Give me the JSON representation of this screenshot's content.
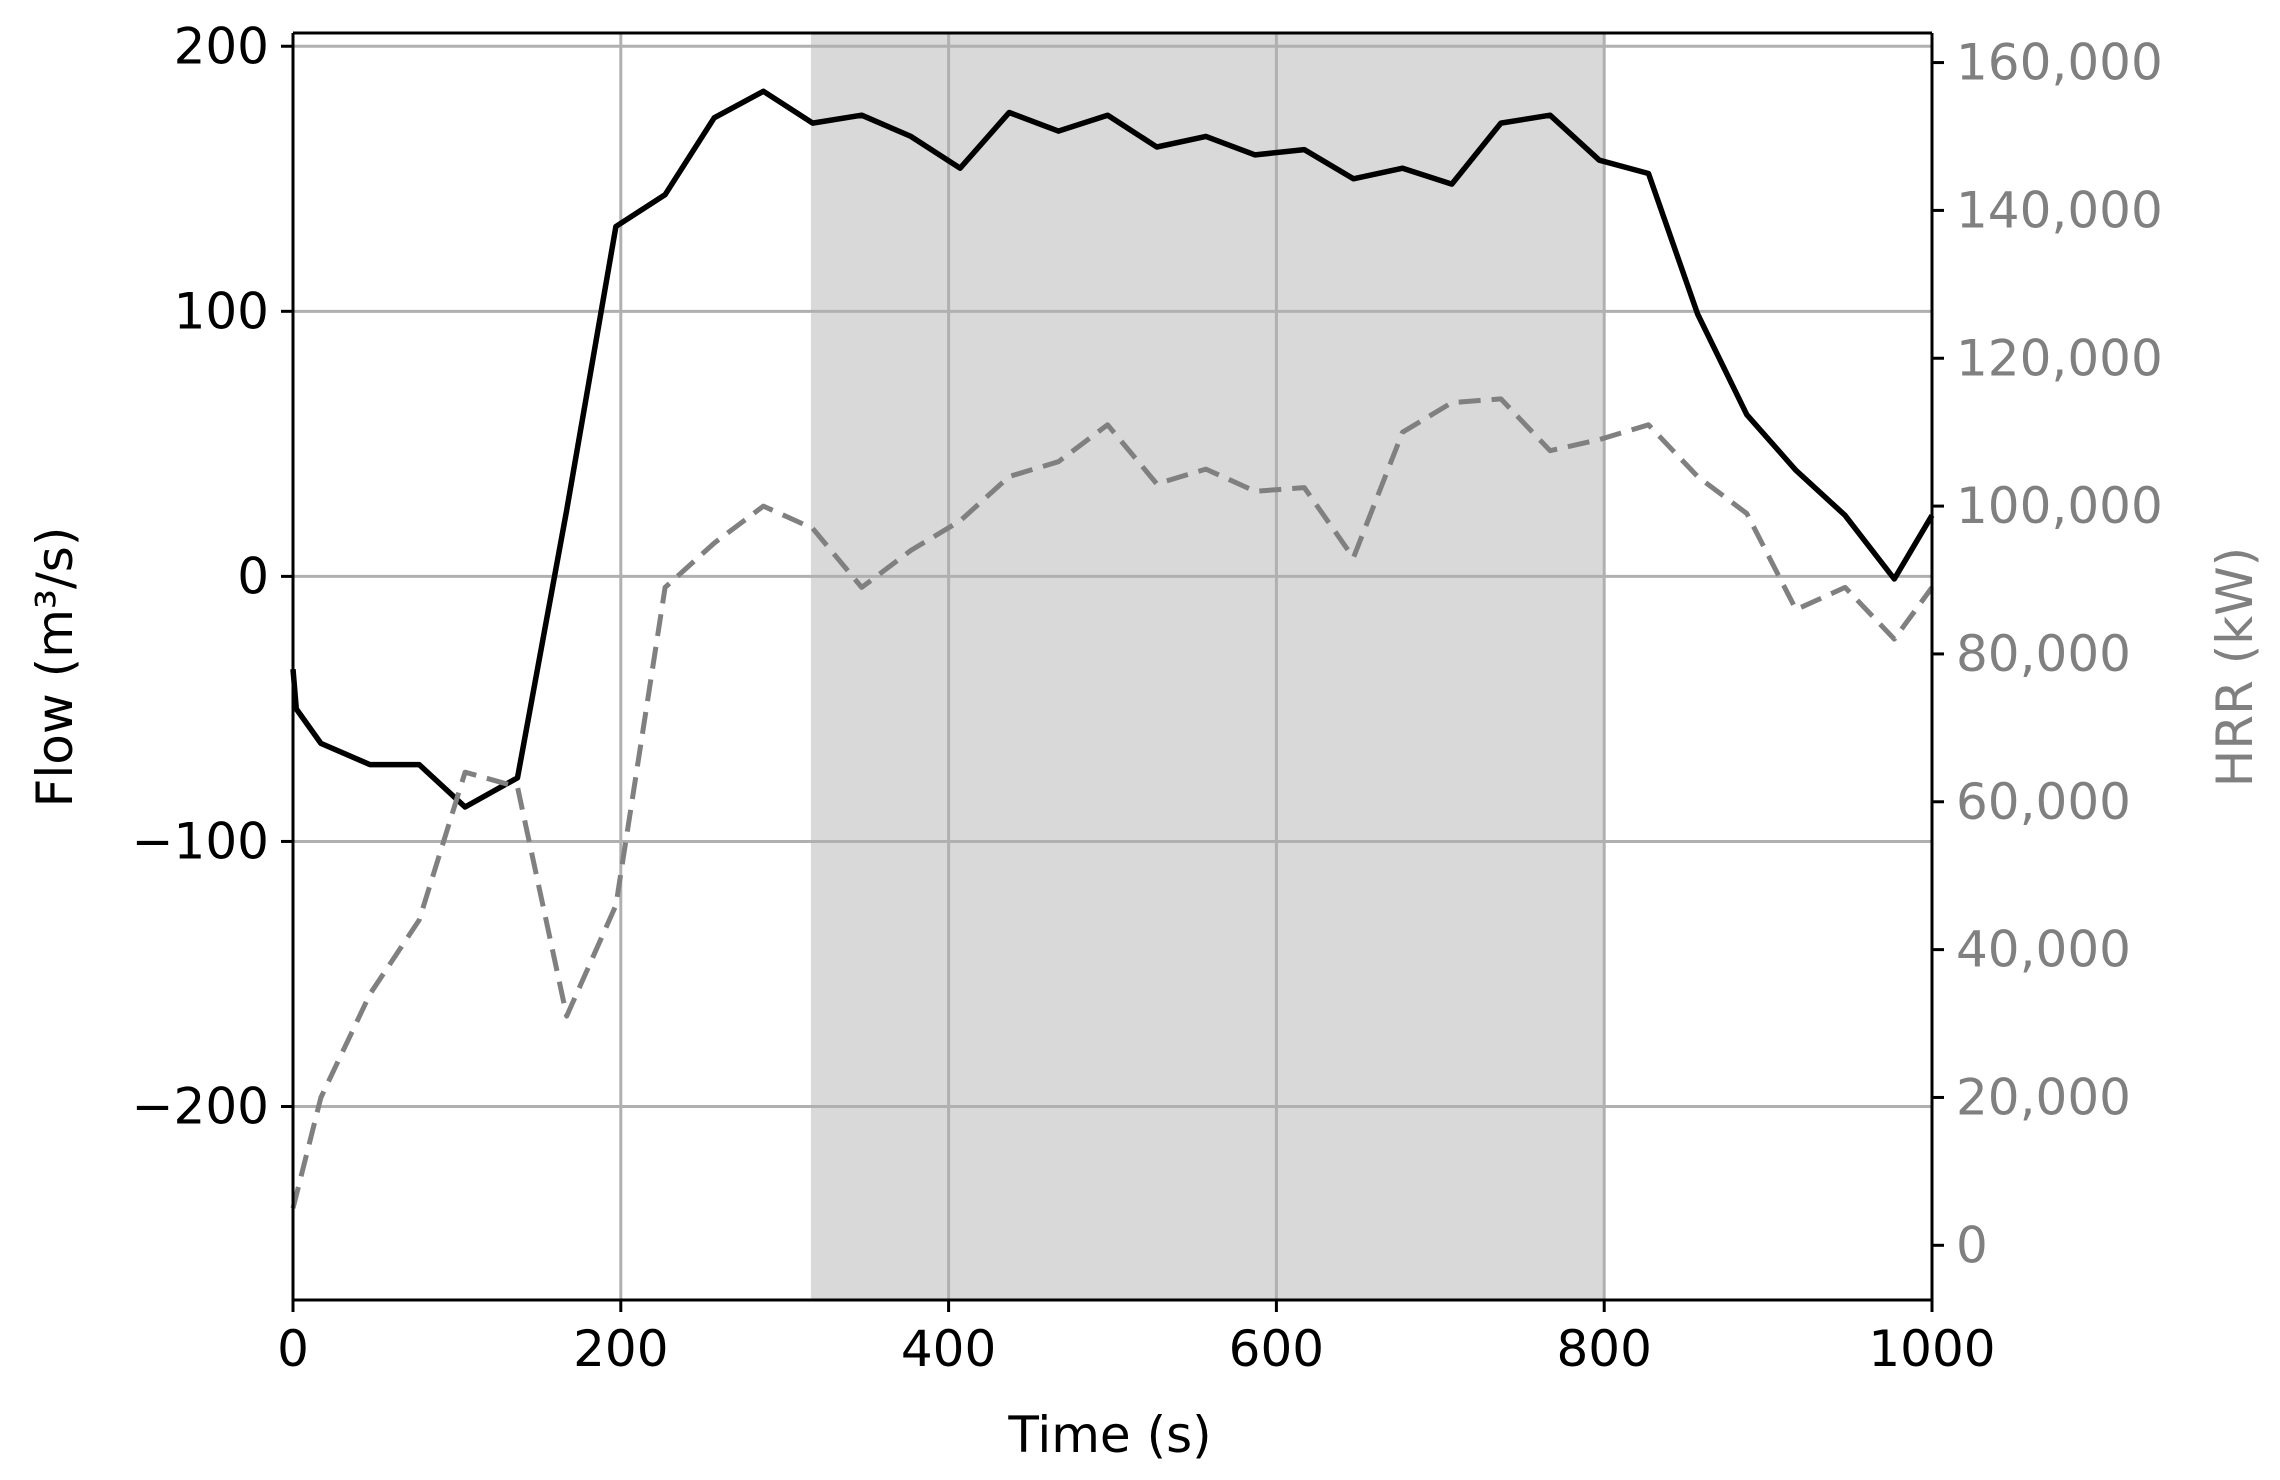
{
  "chart_data": {
    "type": "line",
    "xlabel": "Time (s)",
    "ylabel_left": "Flow (m³/s)",
    "ylabel_right": "HRR (kW)",
    "xlim": [
      0,
      1000
    ],
    "ylim_left": [
      -273,
      205
    ],
    "ylim_right": [
      -7400,
      164000
    ],
    "xticks": [
      0,
      200,
      400,
      600,
      800,
      1000
    ],
    "yticks_left": [
      -200,
      -100,
      0,
      100,
      200
    ],
    "yticks_right": [
      0,
      20000,
      40000,
      60000,
      80000,
      100000,
      120000,
      140000,
      160000
    ],
    "xtick_labels": [
      "0",
      "200",
      "400",
      "600",
      "800",
      "1000"
    ],
    "ytick_labels_left": [
      "−200",
      "−100",
      "0",
      "100",
      "200"
    ],
    "ytick_labels_right": [
      "0",
      "20,000",
      "40,000",
      "60,000",
      "80,000",
      "100,000",
      "120,000",
      "140,000",
      "160,000"
    ],
    "grid": true,
    "shaded_region": {
      "x0": 316,
      "x1": 800,
      "color": "#d9d9d9"
    },
    "colors": {
      "flow": "#000000",
      "hrr": "#808080",
      "grid": "#b0b0b0",
      "axis": "#000000"
    },
    "series": [
      {
        "axis": "left",
        "style": "solid",
        "x": [
          0,
          2,
          17,
          47,
          77,
          105,
          137,
          167,
          197,
          227,
          257,
          287,
          317,
          347,
          377,
          407,
          437,
          467,
          497,
          527,
          557,
          587,
          617,
          647,
          677,
          707,
          737,
          767,
          797,
          827,
          857,
          887,
          917,
          947,
          977,
          1000
        ],
        "values": [
          -35,
          -50,
          -63,
          -71,
          -71,
          -87,
          -76,
          25,
          132,
          144,
          173,
          183,
          171,
          174,
          166,
          154,
          175,
          168,
          174,
          162,
          166,
          159,
          161,
          150,
          154,
          148,
          171,
          174,
          157,
          152,
          99,
          61,
          40,
          23,
          -1,
          23
        ]
      },
      {
        "axis": "right",
        "style": "dashed",
        "x": [
          0,
          17,
          47,
          77,
          105,
          137,
          167,
          197,
          227,
          257,
          287,
          317,
          347,
          377,
          407,
          437,
          467,
          497,
          527,
          557,
          587,
          617,
          647,
          677,
          707,
          737,
          767,
          797,
          827,
          857,
          887,
          917,
          947,
          977,
          1000
        ],
        "values": [
          5000,
          20000,
          34000,
          44000,
          64000,
          62000,
          31000,
          46000,
          89000,
          95000,
          100000,
          97000,
          89000,
          94000,
          98000,
          104000,
          106000,
          111000,
          103000,
          105000,
          102000,
          102500,
          93000,
          110000,
          114000,
          114500,
          107500,
          109000,
          111000,
          104000,
          99000,
          86000,
          89000,
          82000,
          89000
        ]
      }
    ]
  }
}
